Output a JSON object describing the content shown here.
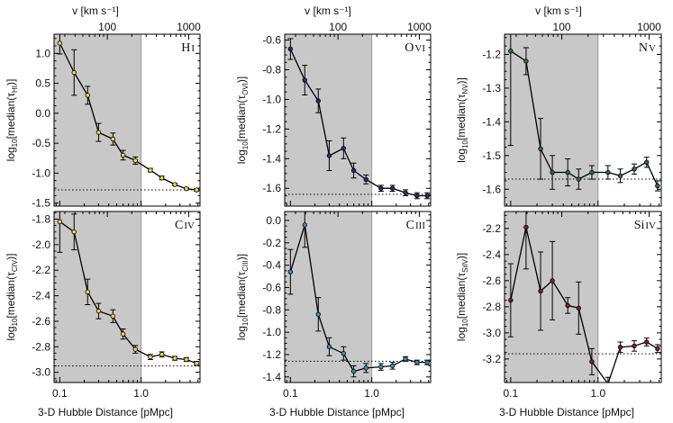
{
  "figure": {
    "top_axis_label": "v [km s⁻¹]",
    "bottom_axis_label": "3-D Hubble Distance [pMpc]",
    "colors": {
      "shade": "#c8c8c8",
      "line": "#000000",
      "reference": "#000000"
    }
  },
  "chart_data": [
    {
      "type": "line",
      "title": "HI",
      "ion": "HI",
      "ylabel": "log10[median(τHI)]",
      "xlabel": "3-D Hubble Distance [pMpc]",
      "top_xlabel": "v [km s⁻¹]",
      "xscale": "log",
      "xlim": [
        0.085,
        5.3
      ],
      "ylim": [
        -1.55,
        1.32
      ],
      "yticks": [
        -1.5,
        -1.0,
        -0.5,
        0.0,
        0.5,
        1.0
      ],
      "ytick_labels": [
        "-1.5",
        "-1.0",
        "-0.5",
        "0.0",
        "0.5",
        "1.0"
      ],
      "xticks": [
        0.1,
        1.0
      ],
      "xtick_labels": [
        "0.1",
        "1.0"
      ],
      "top_ticks": [
        "100",
        "1000"
      ],
      "shaded_range": [
        0.085,
        1.0
      ],
      "reference_level": -1.28,
      "marker_color": "#e6d84a",
      "x": [
        0.1,
        0.15,
        0.22,
        0.3,
        0.45,
        0.6,
        0.85,
        1.3,
        1.8,
        2.6,
        3.6,
        4.8
      ],
      "y": [
        1.17,
        0.68,
        0.3,
        -0.32,
        -0.43,
        -0.7,
        -0.79,
        -0.95,
        -1.08,
        -1.19,
        -1.26,
        -1.28
      ],
      "yerr": [
        0.18,
        0.38,
        0.15,
        0.15,
        0.1,
        0.08,
        0.06,
        0.03,
        0.03,
        0.02,
        0.02,
        0.02
      ]
    },
    {
      "type": "line",
      "title": "OVI",
      "ion": "OVI",
      "ylabel": "log10[median(τOVI)]",
      "xlabel": "3-D Hubble Distance [pMpc]",
      "top_xlabel": "v [km s⁻¹]",
      "xscale": "log",
      "xlim": [
        0.085,
        5.3
      ],
      "ylim": [
        -1.72,
        -0.56
      ],
      "yticks": [
        -1.6,
        -1.4,
        -1.2,
        -1.0,
        -0.8,
        -0.6
      ],
      "ytick_labels": [
        "-1.6",
        "-1.4",
        "-1.2",
        "-1.0",
        "-0.8",
        "-0.6"
      ],
      "xticks": [
        0.1,
        1.0
      ],
      "xtick_labels": [
        "0.1",
        "1.0"
      ],
      "top_ticks": [
        "100",
        "1000"
      ],
      "shaded_range": [
        0.085,
        1.0
      ],
      "reference_level": -1.64,
      "marker_color": "#2b2f7a",
      "x": [
        0.1,
        0.15,
        0.22,
        0.3,
        0.45,
        0.6,
        0.85,
        1.3,
        1.8,
        2.6,
        3.6,
        4.8
      ],
      "y": [
        -0.66,
        -0.87,
        -1.01,
        -1.38,
        -1.33,
        -1.48,
        -1.54,
        -1.6,
        -1.6,
        -1.63,
        -1.65,
        -1.65
      ],
      "yerr": [
        0.07,
        0.1,
        0.08,
        0.1,
        0.07,
        0.05,
        0.03,
        0.02,
        0.02,
        0.02,
        0.02,
        0.02
      ]
    },
    {
      "type": "line",
      "title": "NV",
      "ion": "NV",
      "ylabel": "log10[median(τNV)]",
      "xlabel": "3-D Hubble Distance [pMpc]",
      "top_xlabel": "v [km s⁻¹]",
      "xscale": "log",
      "xlim": [
        0.085,
        5.3
      ],
      "ylim": [
        -1.65,
        -1.14
      ],
      "yticks": [
        -1.6,
        -1.5,
        -1.4,
        -1.3,
        -1.2
      ],
      "ytick_labels": [
        "-1.6",
        "-1.5",
        "-1.4",
        "-1.3",
        "-1.2"
      ],
      "xticks": [
        0.1,
        1.0
      ],
      "xtick_labels": [
        "0.1",
        "1.0"
      ],
      "top_ticks": [
        "100",
        "1000"
      ],
      "shaded_range": [
        0.085,
        1.0
      ],
      "reference_level": -1.57,
      "marker_color": "#2f6f44",
      "x": [
        0.1,
        0.15,
        0.22,
        0.3,
        0.45,
        0.6,
        0.85,
        1.3,
        1.8,
        2.6,
        3.6,
        4.8
      ],
      "y": [
        -1.19,
        -1.22,
        -1.48,
        -1.55,
        -1.55,
        -1.57,
        -1.55,
        -1.55,
        -1.56,
        -1.54,
        -1.52,
        -1.59
      ],
      "yerr": [
        0.28,
        0.04,
        0.09,
        0.05,
        0.04,
        0.03,
        0.02,
        0.02,
        0.02,
        0.015,
        0.015,
        0.015
      ]
    },
    {
      "type": "line",
      "title": "CIV",
      "ion": "CIV",
      "ylabel": "log10[median(τCIV)]",
      "xlabel": "3-D Hubble Distance [pMpc]",
      "top_xlabel": "v [km s⁻¹]",
      "xscale": "log",
      "xlim": [
        0.085,
        5.3
      ],
      "ylim": [
        -3.08,
        -1.74
      ],
      "yticks": [
        -3.0,
        -2.8,
        -2.6,
        -2.4,
        -2.2,
        -2.0,
        -1.8
      ],
      "ytick_labels": [
        "-3.0",
        "-2.8",
        "-2.6",
        "-2.4",
        "-2.2",
        "-2.0",
        "-1.8"
      ],
      "xticks": [
        0.1,
        1.0
      ],
      "xtick_labels": [
        "0.1",
        "1.0"
      ],
      "top_ticks": [
        "100",
        "1000"
      ],
      "shaded_range": [
        0.085,
        1.0
      ],
      "reference_level": -2.95,
      "marker_color": "#e6d84a",
      "x": [
        0.1,
        0.15,
        0.22,
        0.3,
        0.45,
        0.6,
        0.85,
        1.3,
        1.8,
        2.6,
        3.6,
        4.8
      ],
      "y": [
        -1.82,
        -1.9,
        -2.37,
        -2.52,
        -2.56,
        -2.7,
        -2.82,
        -2.88,
        -2.86,
        -2.89,
        -2.9,
        -2.93
      ],
      "yerr": [
        0.24,
        0.14,
        0.1,
        0.06,
        0.05,
        0.04,
        0.03,
        0.02,
        0.02,
        0.015,
        0.015,
        0.015
      ]
    },
    {
      "type": "line",
      "title": "CIII",
      "ion": "CIII",
      "ylabel": "log10[median(τCIII)]",
      "xlabel": "3-D Hubble Distance [pMpc]",
      "top_xlabel": "v [km s⁻¹]",
      "xscale": "log",
      "xlim": [
        0.085,
        5.3
      ],
      "ylim": [
        -1.45,
        0.08
      ],
      "yticks": [
        -1.4,
        -1.2,
        -1.0,
        -0.8,
        -0.6,
        -0.4,
        -0.2,
        0.0
      ],
      "ytick_labels": [
        "-1.4",
        "-1.2",
        "-1.0",
        "-0.8",
        "-0.6",
        "-0.4",
        "-0.2",
        "0.0"
      ],
      "xticks": [
        0.1,
        1.0
      ],
      "xtick_labels": [
        "0.1",
        "1.0"
      ],
      "top_ticks": [
        "100",
        "1000"
      ],
      "shaded_range": [
        0.085,
        1.0
      ],
      "reference_level": -1.26,
      "marker_color": "#3a8fb0",
      "x": [
        0.1,
        0.15,
        0.22,
        0.3,
        0.45,
        0.6,
        0.85,
        1.3,
        1.8,
        2.6,
        3.6,
        4.8
      ],
      "y": [
        -0.46,
        -0.04,
        -0.84,
        -1.13,
        -1.19,
        -1.35,
        -1.32,
        -1.31,
        -1.3,
        -1.24,
        -1.27,
        -1.27
      ],
      "yerr": [
        0.2,
        0.2,
        0.15,
        0.08,
        0.06,
        0.05,
        0.04,
        0.03,
        0.03,
        0.02,
        0.02,
        0.02
      ]
    },
    {
      "type": "line",
      "title": "SiIV",
      "ion": "SiIV",
      "ylabel": "log10[median(τSiIV)]",
      "xlabel": "3-D Hubble Distance [pMpc]",
      "top_xlabel": "v [km s⁻¹]",
      "xscale": "log",
      "xlim": [
        0.085,
        5.3
      ],
      "ylim": [
        -3.38,
        -2.07
      ],
      "yticks": [
        -3.2,
        -3.0,
        -2.8,
        -2.6,
        -2.4,
        -2.2
      ],
      "ytick_labels": [
        "-3.2",
        "-3.0",
        "-2.8",
        "-2.6",
        "-2.4",
        "-2.2"
      ],
      "xticks": [
        0.1,
        1.0
      ],
      "xtick_labels": [
        "0.1",
        "1.0"
      ],
      "top_ticks": [
        "100",
        "1000"
      ],
      "shaded_range": [
        0.085,
        1.0
      ],
      "reference_level": -3.16,
      "marker_color": "#8a1c2e",
      "x": [
        0.1,
        0.15,
        0.22,
        0.3,
        0.45,
        0.6,
        0.85,
        1.3,
        1.8,
        2.6,
        3.6,
        4.8
      ],
      "y": [
        -2.75,
        -2.19,
        -2.68,
        -2.6,
        -2.79,
        -2.81,
        -3.22,
        -3.39,
        -3.11,
        -3.1,
        -3.07,
        -3.12
      ],
      "yerr": [
        0.28,
        0.32,
        0.3,
        0.3,
        0.06,
        0.2,
        0.1,
        0.05,
        0.04,
        0.04,
        0.03,
        0.03
      ]
    }
  ]
}
